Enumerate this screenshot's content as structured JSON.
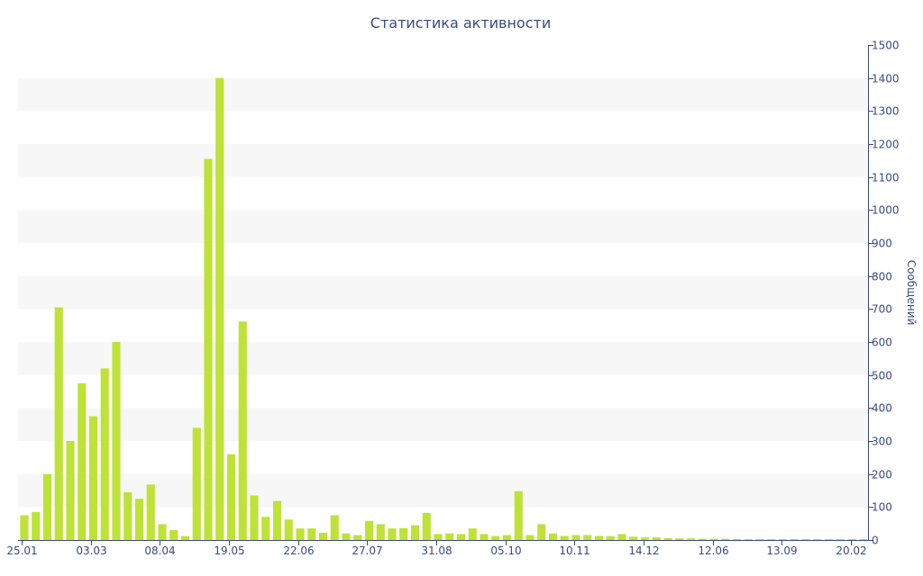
{
  "chart_data": {
    "type": "bar",
    "title": "Статистика активности",
    "xlabel": "",
    "ylabel": "Сообщений",
    "y_axis_side": "right",
    "ylim": [
      0,
      1500
    ],
    "y_ticks": [
      0,
      100,
      200,
      300,
      400,
      500,
      600,
      700,
      800,
      900,
      1000,
      1100,
      1200,
      1300,
      1400,
      1500
    ],
    "grid": "alternating horizontal bands",
    "bar_color": "#bfe238",
    "x_tick_labels": [
      "25.01",
      "03.03",
      "08.04",
      "19.05",
      "22.06",
      "27.07",
      "31.08",
      "05.10",
      "10.11",
      "14.12",
      "12.06",
      "13.09",
      "20.02"
    ],
    "values": [
      75,
      85,
      200,
      705,
      300,
      475,
      375,
      520,
      600,
      145,
      125,
      168,
      48,
      30,
      12,
      340,
      1155,
      1400,
      260,
      662,
      135,
      70,
      118,
      62,
      35,
      35,
      22,
      75,
      20,
      15,
      58,
      48,
      35,
      36,
      45,
      82,
      18,
      20,
      18,
      35,
      18,
      12,
      15,
      148,
      15,
      48,
      20,
      12,
      15,
      15,
      12,
      12,
      18,
      10,
      8,
      8,
      6,
      5,
      5,
      4,
      4,
      4,
      3,
      3,
      3,
      3,
      3,
      3,
      3,
      3,
      3,
      3,
      3,
      3
    ]
  }
}
